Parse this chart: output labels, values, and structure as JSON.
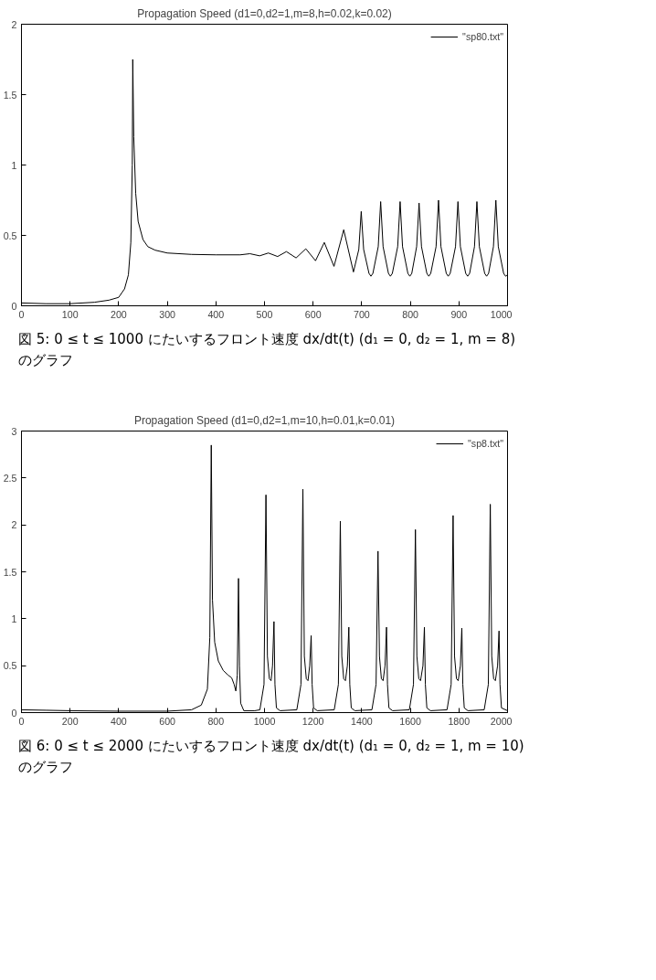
{
  "chart_data": [
    {
      "type": "line",
      "title": "Propagation Speed (d1=0,d2=1,m=8,h=0.02,k=0.02)",
      "legend": "top right",
      "grid": false,
      "xlim": [
        0,
        1000
      ],
      "ylim": [
        0,
        2
      ],
      "xticks": [
        0,
        100,
        200,
        300,
        400,
        500,
        600,
        700,
        800,
        900,
        1000
      ],
      "yticks": [
        0,
        0.5,
        1,
        1.5,
        2
      ],
      "series": [
        {
          "name": "\"sp80.txt\"",
          "color": "#000000",
          "x": [
            0,
            50,
            100,
            150,
            180,
            200,
            212,
            220,
            225,
            228,
            229,
            231,
            235,
            240,
            250,
            260,
            275,
            300,
            350,
            400,
            450,
            470,
            490,
            508,
            527,
            545,
            565,
            585,
            605,
            623,
            643,
            663,
            683,
            694,
            699,
            704,
            715,
            719,
            723,
            734,
            739,
            744,
            755,
            759,
            763,
            774,
            779,
            784,
            795,
            799,
            803,
            813,
            818,
            823,
            834,
            838,
            842,
            853,
            858,
            863,
            874,
            878,
            882,
            893,
            898,
            903,
            914,
            918,
            922,
            932,
            937,
            942,
            953,
            957,
            961,
            971,
            976,
            981,
            992,
            996,
            1000
          ],
          "values": [
            0.02,
            0.015,
            0.015,
            0.025,
            0.04,
            0.06,
            0.12,
            0.22,
            0.45,
            1.0,
            1.75,
            1.2,
            0.8,
            0.6,
            0.47,
            0.42,
            0.395,
            0.375,
            0.365,
            0.362,
            0.362,
            0.37,
            0.355,
            0.375,
            0.35,
            0.385,
            0.34,
            0.405,
            0.32,
            0.45,
            0.28,
            0.54,
            0.24,
            0.4,
            0.67,
            0.4,
            0.23,
            0.21,
            0.23,
            0.42,
            0.74,
            0.42,
            0.23,
            0.21,
            0.23,
            0.42,
            0.74,
            0.42,
            0.23,
            0.21,
            0.23,
            0.42,
            0.73,
            0.42,
            0.23,
            0.21,
            0.23,
            0.42,
            0.75,
            0.42,
            0.23,
            0.21,
            0.23,
            0.42,
            0.74,
            0.42,
            0.23,
            0.21,
            0.23,
            0.42,
            0.74,
            0.42,
            0.23,
            0.21,
            0.23,
            0.42,
            0.75,
            0.42,
            0.23,
            0.21,
            0.22
          ]
        }
      ],
      "annotations": [
        "図 5: 0 ≤ t ≤ 1000 にたいするフロント速度 dx/dt(t)  (d₁ = 0, d₂ = 1, m = 8) のグラフ"
      ]
    },
    {
      "type": "line",
      "title": "Propagation Speed (d1=0,d2=1,m=10,h=0.01,k=0.01)",
      "legend": "top right",
      "grid": false,
      "xlim": [
        0,
        2000
      ],
      "ylim": [
        0,
        3
      ],
      "xticks": [
        0,
        200,
        400,
        600,
        800,
        1000,
        1200,
        1400,
        1600,
        1800,
        2000
      ],
      "yticks": [
        0,
        0.5,
        1,
        1.5,
        2,
        2.5,
        3
      ],
      "series": [
        {
          "name": "\"sp8.txt\"",
          "color": "#000000",
          "x": [
            0,
            100,
            200,
            400,
            600,
            700,
            740,
            765,
            775,
            781,
            786,
            795,
            810,
            830,
            850,
            865,
            875,
            882,
            888,
            893,
            897,
            902,
            915,
            960,
            981,
            998,
            1006,
            1012,
            1020,
            1027,
            1033,
            1039,
            1043,
            1049,
            1064,
            1133,
            1150,
            1158,
            1164,
            1172,
            1179,
            1186,
            1192,
            1196,
            1202,
            1217,
            1287,
            1304,
            1312,
            1318,
            1326,
            1333,
            1341,
            1347,
            1351,
            1357,
            1372,
            1442,
            1459,
            1467,
            1473,
            1481,
            1488,
            1496,
            1502,
            1506,
            1512,
            1527,
            1596,
            1613,
            1621,
            1627,
            1635,
            1642,
            1652,
            1658,
            1662,
            1668,
            1683,
            1751,
            1768,
            1776,
            1782,
            1790,
            1797,
            1806,
            1812,
            1816,
            1822,
            1837,
            1904,
            1921,
            1929,
            1935,
            1943,
            1950,
            1959,
            1965,
            1969,
            1975,
            2000
          ],
          "values": [
            0.03,
            0.025,
            0.02,
            0.015,
            0.015,
            0.03,
            0.08,
            0.25,
            0.8,
            2.85,
            1.2,
            0.75,
            0.55,
            0.45,
            0.4,
            0.37,
            0.3,
            0.23,
            0.4,
            1.43,
            0.5,
            0.1,
            0.02,
            0.02,
            0.03,
            0.3,
            2.32,
            0.6,
            0.36,
            0.34,
            0.5,
            0.97,
            0.3,
            0.05,
            0.02,
            0.03,
            0.3,
            2.38,
            0.6,
            0.36,
            0.34,
            0.5,
            0.82,
            0.3,
            0.05,
            0.02,
            0.03,
            0.3,
            2.04,
            0.6,
            0.36,
            0.34,
            0.5,
            0.91,
            0.3,
            0.05,
            0.02,
            0.03,
            0.3,
            1.72,
            0.6,
            0.36,
            0.34,
            0.5,
            0.91,
            0.3,
            0.05,
            0.02,
            0.03,
            0.3,
            1.95,
            0.6,
            0.36,
            0.34,
            0.5,
            0.91,
            0.3,
            0.05,
            0.02,
            0.03,
            0.3,
            2.1,
            0.6,
            0.36,
            0.34,
            0.5,
            0.9,
            0.3,
            0.05,
            0.02,
            0.03,
            0.3,
            2.22,
            0.6,
            0.36,
            0.34,
            0.5,
            0.87,
            0.3,
            0.05,
            0.02
          ]
        }
      ],
      "annotations": [
        "図 6: 0 ≤ t ≤ 2000 にたいするフロント速度 dx/dt(t)  (d₁ = 0, d₂ = 1, m = 10) のグラフ"
      ]
    }
  ]
}
